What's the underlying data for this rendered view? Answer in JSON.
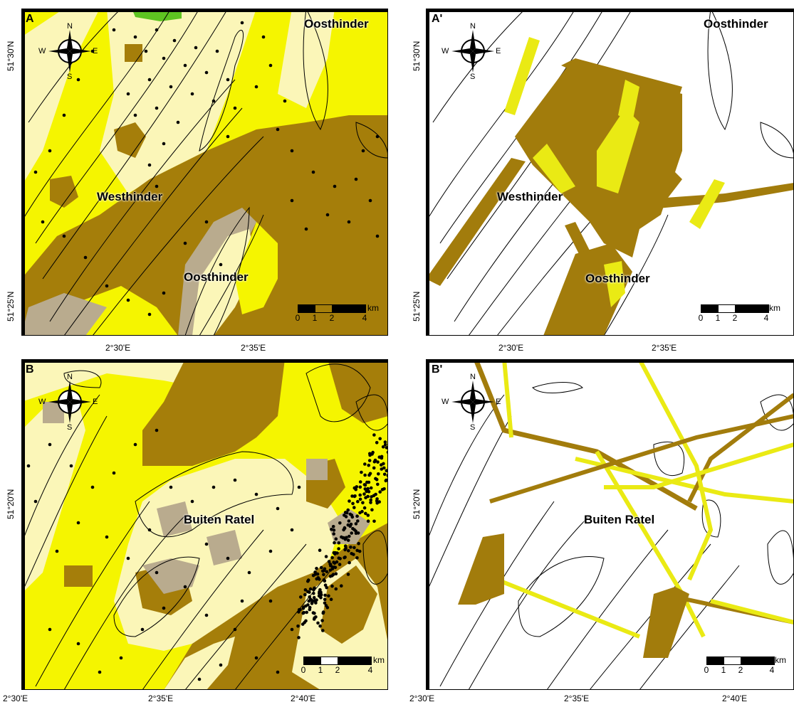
{
  "colors": {
    "yellow": "#f5f500",
    "pale_yellow": "#fbf6b8",
    "brown": "#a57e0a",
    "grey": "#b9ab8e",
    "green": "#5ec421",
    "track_yellow": "#eaea14",
    "track_brown": "#a27c0c"
  },
  "panels": {
    "A": {
      "label": "A",
      "names": [
        "Oosthinder",
        "Westhinder",
        "Oosthinder"
      ]
    },
    "A2": {
      "label": "A'",
      "names": [
        "Oosthinder",
        "Westhinder",
        "Oosthinder"
      ]
    },
    "B": {
      "label": "B",
      "names": [
        "Buiten Ratel"
      ]
    },
    "B2": {
      "label": "B'",
      "names": [
        "Buiten Ratel"
      ]
    }
  },
  "compass": {
    "n": "N",
    "s": "S",
    "e": "E",
    "w": "W",
    "icon": "compass-rose-icon"
  },
  "scale_bar": {
    "unit": "km",
    "ticks": [
      "0",
      "1",
      "2",
      "4"
    ]
  },
  "axes": {
    "top_x": [
      "2°30'E",
      "2°35'E"
    ],
    "top_y": [
      "51°30'N",
      "51°25'N"
    ],
    "bottom_x": [
      "2°30'E",
      "2°35'E",
      "2°40'E"
    ],
    "bottom_y": [
      "51°20'N"
    ]
  }
}
